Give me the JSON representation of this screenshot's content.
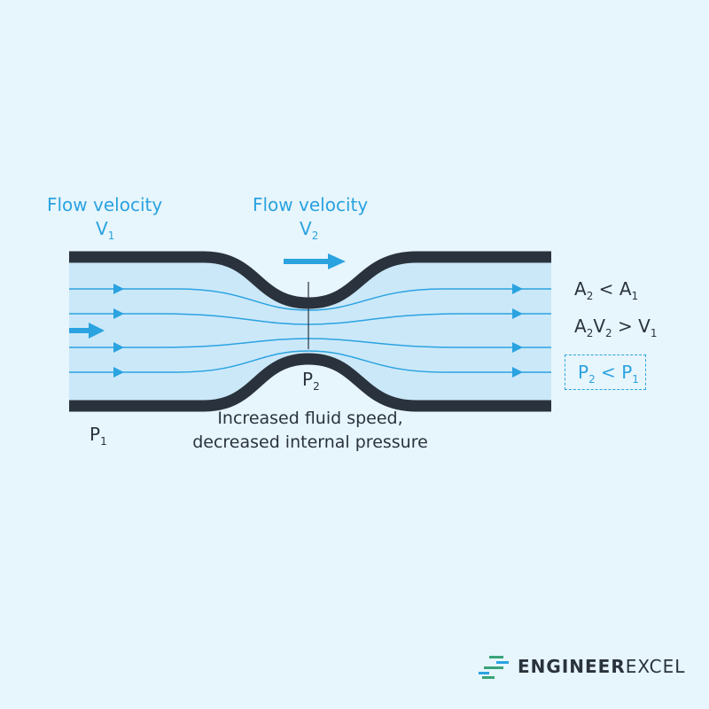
{
  "labels": {
    "v1_title": "Flow velocity",
    "v1": "V",
    "v1_sub": "1",
    "v2_title": "Flow velocity",
    "v2": "V",
    "v2_sub": "2",
    "p1": "P",
    "p1_sub": "1",
    "p2": "P",
    "p2_sub": "2",
    "caption_line1": "Increased fluid speed,",
    "caption_line2": "decreased internal pressure"
  },
  "relations": {
    "r1": {
      "a": "A",
      "a_sub": "2",
      "op": " < ",
      "b": "A",
      "b_sub": "1"
    },
    "r2": {
      "a": "A",
      "a_sub": "2",
      "c": "V",
      "c_sub": "2",
      "op": " > ",
      "b": "V",
      "b_sub": "1"
    },
    "r3": {
      "a": "P",
      "a_sub": "2",
      "op": " < ",
      "b": "P",
      "b_sub": "1"
    }
  },
  "logo": {
    "bold": "ENGINEER",
    "light": "EXCEL"
  },
  "colors": {
    "background": "#e7f5fc",
    "fluid": "#cbe8f9",
    "wall": "#2a333d",
    "accent": "#2aa3e0"
  }
}
